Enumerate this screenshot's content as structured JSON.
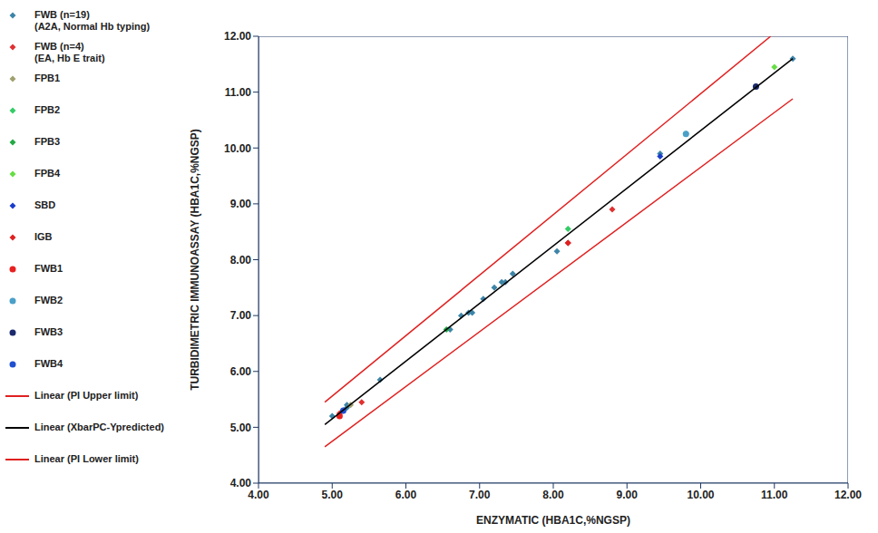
{
  "chart_data": {
    "type": "scatter",
    "xlabel": "ENZYMATIC (HBA1C,%NGSP)",
    "ylabel": "TURBIDIMETRIC IMMUNOASSAY (HBA1C,%NGSP)",
    "xlim": [
      4,
      12
    ],
    "ylim": [
      4,
      12
    ],
    "xticks": [
      {
        "value": 4,
        "label": "4.00"
      },
      {
        "value": 5,
        "label": "5.00"
      },
      {
        "value": 6,
        "label": "6.00"
      },
      {
        "value": 7,
        "label": "7.00"
      },
      {
        "value": 8,
        "label": "8.00"
      },
      {
        "value": 9,
        "label": "9.00"
      },
      {
        "value": 10,
        "label": "10.00"
      },
      {
        "value": 11,
        "label": "11.00"
      },
      {
        "value": 12,
        "label": "12.00"
      }
    ],
    "yticks": [
      {
        "value": 4,
        "label": "4.00"
      },
      {
        "value": 5,
        "label": "5.00"
      },
      {
        "value": 6,
        "label": "6.00"
      },
      {
        "value": 7,
        "label": "7.00"
      },
      {
        "value": 8,
        "label": "8.00"
      },
      {
        "value": 9,
        "label": "9.00"
      },
      {
        "value": 10,
        "label": "10.00"
      },
      {
        "value": 11,
        "label": "11.00"
      },
      {
        "value": 12,
        "label": "12.00"
      }
    ],
    "grid": false,
    "legend": "left",
    "series": [
      {
        "name": "FWB (n=19)\n(A2A, Normal Hb typing)",
        "color": "#3d85a8",
        "marker": "diamond",
        "x": [
          5.0,
          5.2,
          5.65,
          6.75,
          6.9,
          7.05,
          7.2,
          7.35,
          7.45,
          8.05,
          9.8,
          11.25,
          6.85,
          5.15,
          7.3,
          6.6,
          9.45,
          10.75,
          5.2
        ],
        "values": [
          5.2,
          5.35,
          5.85,
          7.0,
          7.05,
          7.3,
          7.5,
          7.6,
          7.75,
          8.15,
          10.25,
          11.6,
          7.05,
          5.3,
          7.6,
          6.75,
          9.9,
          11.1,
          5.4
        ]
      },
      {
        "name": "FWB (n=4)\n(EA, Hb E trait)",
        "color": "#e03030",
        "marker": "diamond",
        "x": [
          5.1,
          5.4,
          8.2,
          8.8
        ],
        "values": [
          5.25,
          5.45,
          8.3,
          8.9
        ]
      },
      {
        "name": "FPB1",
        "color": "#a0a070",
        "marker": "diamond",
        "x": [
          5.25
        ],
        "values": [
          5.4
        ]
      },
      {
        "name": "FPB2",
        "color": "#33cc66",
        "marker": "diamond",
        "x": [
          8.2
        ],
        "values": [
          8.55
        ]
      },
      {
        "name": "FPB3",
        "color": "#22aa44",
        "marker": "diamond",
        "x": [
          6.55
        ],
        "values": [
          6.75
        ]
      },
      {
        "name": "FPB4",
        "color": "#66dd44",
        "marker": "diamond",
        "x": [
          11.0
        ],
        "values": [
          11.45
        ]
      },
      {
        "name": "SBD",
        "color": "#1a3ccc",
        "marker": "diamond",
        "x": [
          9.45
        ],
        "values": [
          9.85
        ]
      },
      {
        "name": "IGB",
        "color": "#e02020",
        "marker": "diamond",
        "x": [
          8.2
        ],
        "values": [
          8.3
        ]
      },
      {
        "name": "FWB1",
        "color": "#e82020",
        "marker": "circle",
        "x": [
          5.1
        ],
        "values": [
          5.2
        ]
      },
      {
        "name": "FWB2",
        "color": "#4aa0c8",
        "marker": "circle",
        "x": [
          9.8
        ],
        "values": [
          10.25
        ]
      },
      {
        "name": "FWB3",
        "color": "#1a2a6c",
        "marker": "circle",
        "x": [
          10.75
        ],
        "values": [
          11.1
        ]
      },
      {
        "name": "FWB4",
        "color": "#2050d0",
        "marker": "circle",
        "x": [
          5.15
        ],
        "values": [
          5.3
        ]
      },
      {
        "name": "Linear (PI Upper limit)",
        "color": "#e02020",
        "type": "line",
        "line_style": "solid",
        "x": [
          4.9,
          10.95
        ],
        "values": [
          5.45,
          12.0
        ]
      },
      {
        "name": "Linear (XbarPC-Ypredicted)",
        "color": "#000000",
        "type": "line",
        "line_style": "solid",
        "x": [
          4.9,
          11.25
        ],
        "values": [
          5.05,
          11.6
        ]
      },
      {
        "name": "Linear (PI Lower limit)",
        "color": "#e02020",
        "type": "line",
        "line_style": "solid",
        "x": [
          4.9,
          11.25
        ],
        "values": [
          4.65,
          10.88
        ]
      }
    ]
  }
}
